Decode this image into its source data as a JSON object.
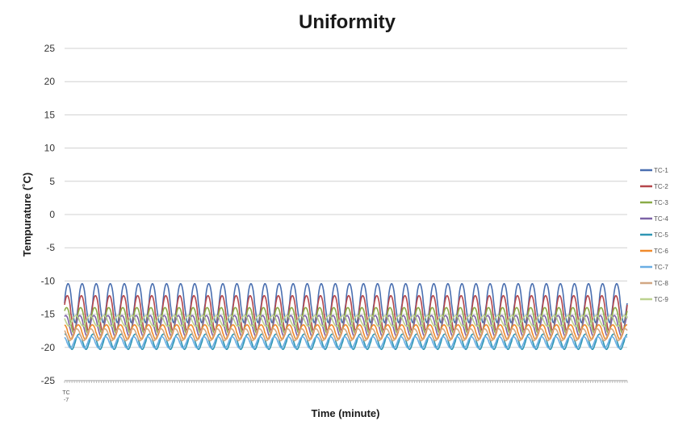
{
  "chart_data": {
    "type": "line",
    "title": "Uniformity",
    "xlabel": "Time (minute)",
    "ylabel": "Tempurature  (˚C)",
    "ylim": [
      -25,
      25
    ],
    "yticks": [
      25,
      20,
      15,
      10,
      5,
      0,
      -5,
      -10,
      -15,
      -20,
      -25
    ],
    "x_category_label": "TC\n-7",
    "grid": true,
    "legend_position": "right",
    "cycles": 40,
    "series": [
      {
        "name": "TC-1",
        "color": "#4a6fb0",
        "min": -16.3,
        "max": -10.4
      },
      {
        "name": "TC-2",
        "color": "#b5464b",
        "min": -17.5,
        "max": -12.2
      },
      {
        "name": "TC-3",
        "color": "#8aab48",
        "min": -17.8,
        "max": -14.0
      },
      {
        "name": "TC-4",
        "color": "#7c62a6",
        "min": -18.3,
        "max": -15.2
      },
      {
        "name": "TC-5",
        "color": "#2f96b4",
        "min": -20.3,
        "max": -18.0
      },
      {
        "name": "TC-6",
        "color": "#f08a2b",
        "min": -18.8,
        "max": -16.6
      },
      {
        "name": "TC-7",
        "color": "#6aaee4",
        "min": -20.1,
        "max": -18.4
      },
      {
        "name": "TC-8",
        "color": "#d2a783",
        "min": -19.0,
        "max": -17.2
      },
      {
        "name": "TC-9",
        "color": "#bcd28f",
        "min": -16.8,
        "max": -15.2
      }
    ]
  }
}
